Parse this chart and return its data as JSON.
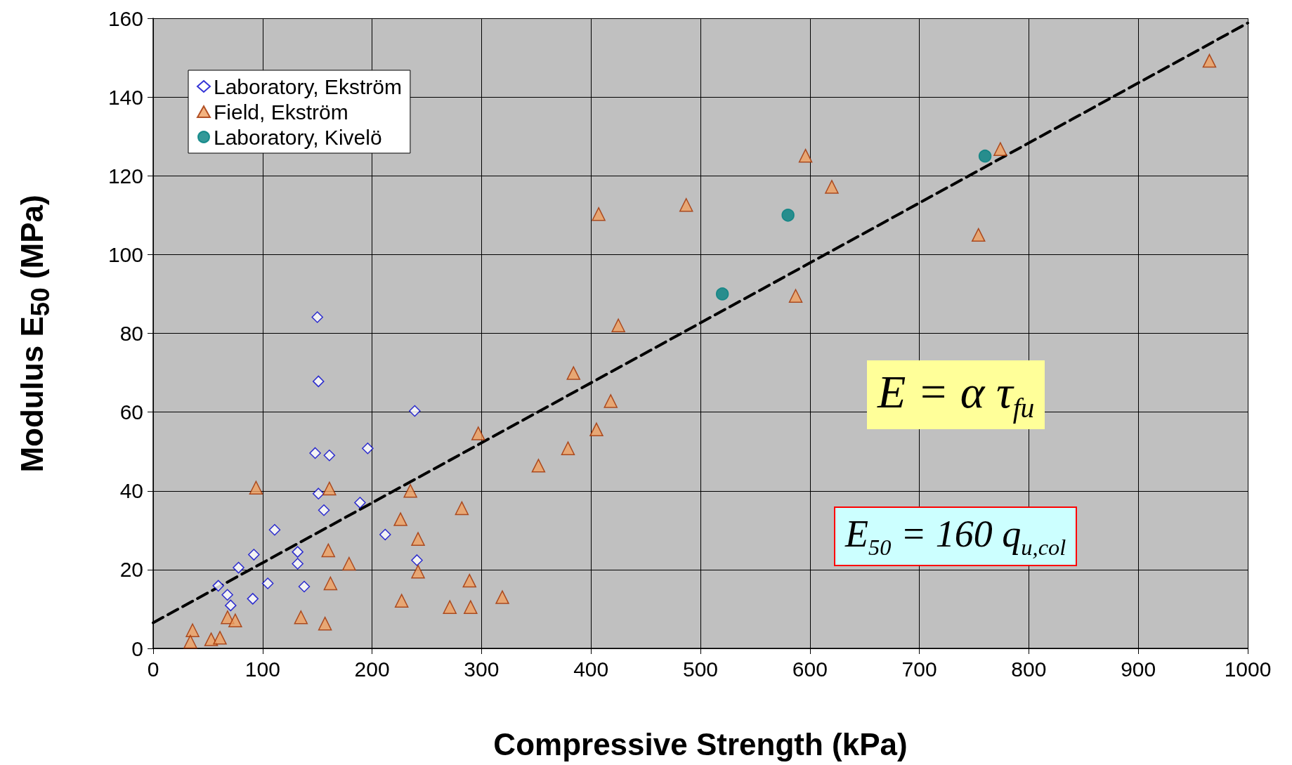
{
  "chart_data": {
    "type": "scatter",
    "xlabel": "Compressive Strength (kPa)",
    "ylabel": "Modulus E$_{50}$ (MPa)",
    "xlim": [
      0,
      1000
    ],
    "xticks": [
      0,
      100,
      200,
      300,
      400,
      500,
      600,
      700,
      800,
      900,
      1000
    ],
    "ylim": [
      0,
      160
    ],
    "yticks": [
      0,
      20,
      40,
      60,
      80,
      100,
      120,
      140,
      160
    ],
    "grid": true,
    "legend": "top left",
    "annotations": [
      "E = α τ$_{fu}$",
      "E$_{50}$ = 160 q$_{u,col}$"
    ],
    "series": [
      {
        "name": "Laboratory, Ekström",
        "color": "#0000cc",
        "marker": "diamond",
        "x": [
          59.5,
          67.8,
          70.8,
          78,
          91,
          92,
          104.7,
          111,
          132,
          132,
          138,
          150,
          151,
          148,
          161,
          151,
          156,
          189,
          196,
          212,
          239,
          241
        ],
        "values": [
          15.9,
          13.6,
          10.9,
          20.5,
          12.6,
          23.8,
          16.5,
          30.1,
          24.5,
          21.5,
          15.7,
          84.1,
          67.8,
          49.6,
          49,
          39.3,
          35.1,
          37,
          50.8,
          28.9,
          60.3,
          22.4
        ]
      },
      {
        "name": "Field, Ekström",
        "color": "#f0a060",
        "marker": "triangle",
        "x": [
          36,
          34,
          53,
          61,
          68,
          75,
          94,
          135,
          157,
          160,
          161,
          162,
          179,
          227,
          226,
          235,
          242,
          242,
          271,
          282,
          290,
          289,
          297,
          319,
          352,
          379,
          384,
          405,
          407,
          418,
          425,
          487,
          587,
          596,
          620,
          754,
          774,
          965
        ],
        "values": [
          4.6,
          1.7,
          2.3,
          2.7,
          7.9,
          7.1,
          40.8,
          7.9,
          6.3,
          24.9,
          40.6,
          16.5,
          21.5,
          12.1,
          32.8,
          40,
          27.8,
          19.5,
          10.5,
          35.6,
          10.5,
          17.2,
          54.6,
          13,
          46.4,
          50.8,
          69.9,
          55.6,
          110.3,
          62.8,
          82,
          112.6,
          89.5,
          125.1,
          117.2,
          105,
          126.8,
          149.2
        ]
      },
      {
        "name": "Laboratory, Kivelö",
        "color": "#008080",
        "marker": "circle",
        "x": [
          520,
          580,
          760
        ],
        "values": [
          90,
          110,
          125
        ]
      },
      {
        "type": "line",
        "color": "#000000",
        "marker": "none",
        "line_style": "dashed",
        "x": [
          0,
          1000
        ],
        "values": [
          6.5,
          158.8
        ]
      }
    ]
  }
}
